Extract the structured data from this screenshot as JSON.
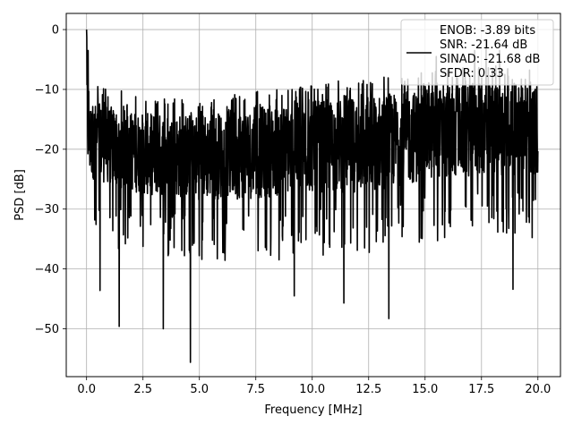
{
  "chart_data": {
    "type": "line",
    "title": "",
    "xlabel": "Frequency [MHz]",
    "ylabel": "PSD [dB]",
    "xlim": [
      -0.9,
      21.0
    ],
    "ylim": [
      -58.0,
      2.7
    ],
    "x_ticks": [
      0.0,
      2.5,
      5.0,
      7.5,
      10.0,
      12.5,
      15.0,
      17.5,
      20.0
    ],
    "x_tick_labels": [
      "0.0",
      "2.5",
      "5.0",
      "7.5",
      "10.0",
      "12.5",
      "15.0",
      "17.5",
      "20.0"
    ],
    "y_ticks": [
      0,
      -10,
      -20,
      -30,
      -40,
      -50
    ],
    "y_tick_labels": [
      "0",
      "−10",
      "−20",
      "−30",
      "−40",
      "−50"
    ],
    "grid": true,
    "legend_position": "top-right",
    "series_color": "#000000",
    "legend": {
      "lines": [
        "ENOB: -3.89 bits",
        "SNR: -21.64 dB",
        "SINAD: -21.68 dB",
        "SFDR: 0.33"
      ]
    },
    "series": [
      {
        "x_start": 0.0,
        "x_end": 20.0,
        "num_points": 2048,
        "envelope_top": [
          [
            0.0,
            0.0
          ],
          [
            0.1,
            -12
          ],
          [
            2.5,
            -14
          ],
          [
            5.0,
            -14
          ],
          [
            7.5,
            -13
          ],
          [
            10.0,
            -12
          ],
          [
            12.5,
            -11
          ],
          [
            15.0,
            -10
          ],
          [
            17.5,
            -9
          ],
          [
            20.0,
            -9
          ]
        ],
        "envelope_bottom": [
          [
            0.05,
            -27
          ],
          [
            2.5,
            -30
          ],
          [
            5.0,
            -31
          ],
          [
            7.5,
            -31
          ],
          [
            10.0,
            -30
          ],
          [
            12.5,
            -30
          ],
          [
            15.0,
            -28
          ],
          [
            17.5,
            -27
          ],
          [
            20.0,
            -27
          ]
        ],
        "notable_points": [
          {
            "x": 0.0,
            "y": 0.0
          },
          {
            "x": 0.07,
            "y": -3.5
          },
          {
            "x": 0.6,
            "y": -43.6
          },
          {
            "x": 1.45,
            "y": -49.6
          },
          {
            "x": 3.4,
            "y": -50.0
          },
          {
            "x": 4.6,
            "y": -55.6
          },
          {
            "x": 9.2,
            "y": -44.5
          },
          {
            "x": 11.4,
            "y": -45.7
          },
          {
            "x": 13.4,
            "y": -48.3
          },
          {
            "x": 18.9,
            "y": -43.4
          },
          {
            "x": 15.5,
            "y": -4.5
          },
          {
            "x": 17.2,
            "y": -3.5
          },
          {
            "x": 17.7,
            "y": -2.0
          },
          {
            "x": 18.3,
            "y": -3.5
          }
        ]
      }
    ]
  }
}
